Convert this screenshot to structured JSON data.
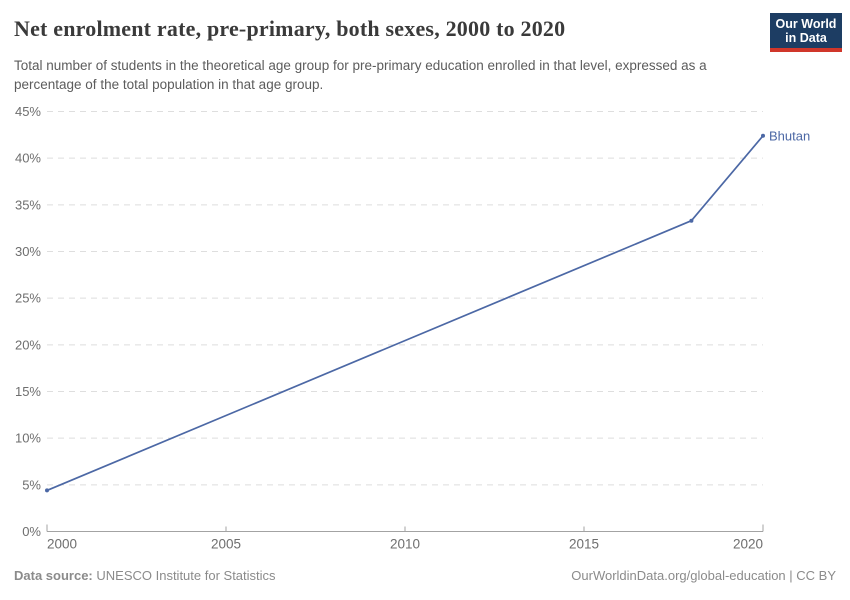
{
  "header": {
    "title": "Net enrolment rate, pre-primary, both sexes, 2000 to 2020",
    "subtitle": "Total number of students in the theoretical age group for pre-primary education enrolled in that level, expressed as a percentage of the total population in that age group.",
    "logo": {
      "line1": "Our World",
      "line2": "in Data"
    }
  },
  "chart_data": {
    "type": "line",
    "title": "Net enrolment rate, pre-primary, both sexes, 2000 to 2020",
    "xlabel": "",
    "ylabel": "",
    "xlim": [
      2000,
      2020
    ],
    "ylim": [
      0,
      45
    ],
    "x_ticks": [
      2000,
      2005,
      2010,
      2015,
      2020
    ],
    "y_ticks": [
      0,
      5,
      10,
      15,
      20,
      25,
      30,
      35,
      40,
      45
    ],
    "y_tick_suffix": "%",
    "grid": "horizontal-dashed",
    "legend": "end-of-line-label",
    "series": [
      {
        "name": "Bhutan",
        "color": "#4c68a5",
        "points": [
          {
            "year": 2000,
            "value": 4.4
          },
          {
            "year": 2018,
            "value": 33.3
          },
          {
            "year": 2020,
            "value": 42.4
          }
        ]
      }
    ]
  },
  "footer": {
    "source_label": "Data source:",
    "source_value": "UNESCO Institute for Statistics",
    "credit": "OurWorldinData.org/global-education | CC BY"
  },
  "colors": {
    "series_line": "#4c68a5",
    "grid_line": "#dedede",
    "axis_line": "#a3a3a3",
    "tick_label": "#6e6e6e",
    "title_text": "#3a3a3a",
    "subtitle_text": "#5c5c5c",
    "footer_text": "#8b8b8b",
    "logo_bg": "#1d3d63",
    "logo_stripe": "#d0362a",
    "background": "#ffffff"
  }
}
